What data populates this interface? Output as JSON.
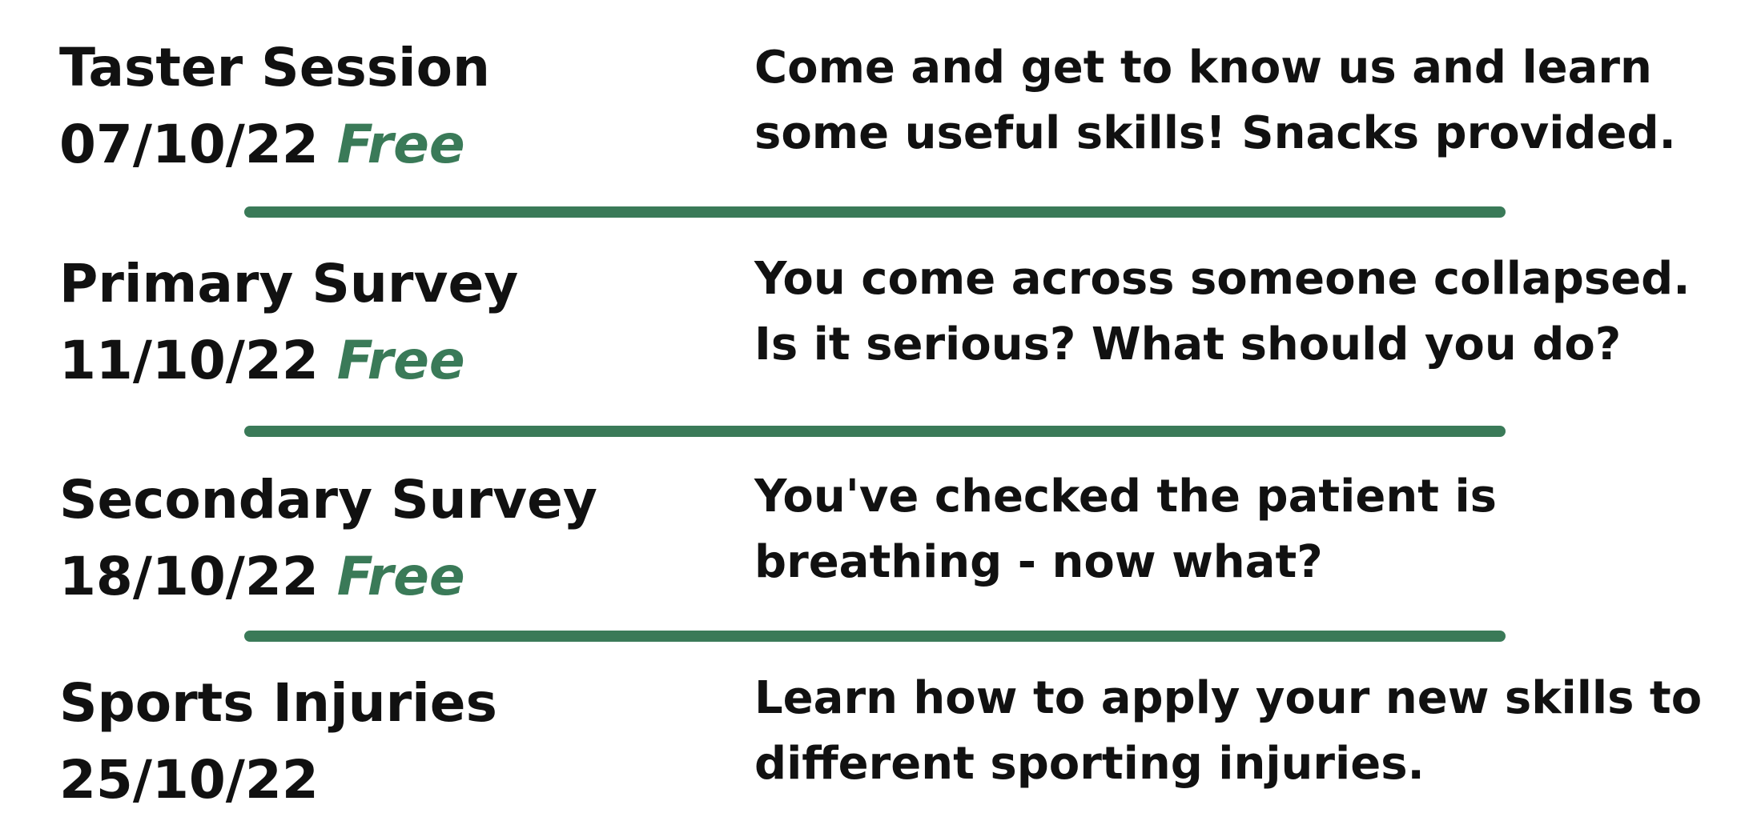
{
  "sessions": [
    {
      "title": "Taster Session",
      "date": "07/10/22",
      "price": "Free",
      "description": "Come and get to know us and learn some useful skills! Snacks provided."
    },
    {
      "title": "Primary Survey",
      "date": "11/10/22",
      "price": "Free",
      "description": "You come across someone collapsed. Is it serious? What should you do?"
    },
    {
      "title": "Secondary Survey",
      "date": "18/10/22",
      "price": "Free",
      "description": "You've checked the patient is breathing - now what?"
    },
    {
      "title": "Sports Injuries",
      "date": "25/10/22",
      "description": "Learn how to apply your new skills to different sporting injuries."
    }
  ],
  "colors": {
    "accent": "#3a7a58",
    "text": "#111111"
  }
}
